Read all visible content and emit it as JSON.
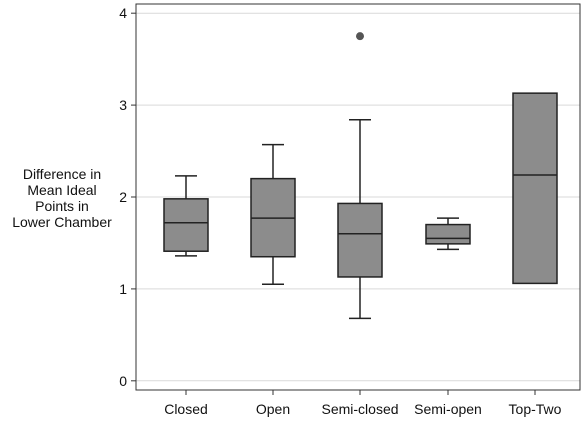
{
  "chart_data": {
    "type": "boxplot",
    "title": "",
    "xlabel": "",
    "ylabel_lines": [
      "Difference in",
      "Mean Ideal",
      "Points in",
      "Lower Chamber"
    ],
    "ylim": [
      -0.1,
      4.1
    ],
    "yticks": [
      0,
      1,
      2,
      3,
      4
    ],
    "ytick_labels": [
      "0",
      "1",
      "2",
      "3",
      "4"
    ],
    "grid": "horizontal",
    "categories": [
      "Closed",
      "Open",
      "Semi-closed",
      "Semi-open",
      "Top-Two"
    ],
    "boxes": [
      {
        "category": "Closed",
        "whisker_low": 1.36,
        "q1": 1.41,
        "median": 1.72,
        "q3": 1.98,
        "whisker_high": 2.23,
        "outliers": []
      },
      {
        "category": "Open",
        "whisker_low": 1.05,
        "q1": 1.35,
        "median": 1.77,
        "q3": 2.2,
        "whisker_high": 2.57,
        "outliers": []
      },
      {
        "category": "Semi-closed",
        "whisker_low": 0.68,
        "q1": 1.13,
        "median": 1.6,
        "q3": 1.93,
        "whisker_high": 2.84,
        "outliers": [
          3.75
        ]
      },
      {
        "category": "Semi-open",
        "whisker_low": 1.43,
        "q1": 1.49,
        "median": 1.55,
        "q3": 1.7,
        "whisker_high": 1.77,
        "outliers": []
      },
      {
        "category": "Top-Two",
        "whisker_low": 1.06,
        "q1": 1.06,
        "median": 2.24,
        "q3": 3.13,
        "whisker_high": 3.13,
        "outliers": []
      }
    ],
    "colors": {
      "box_fill": "#8c8c8c",
      "box_stroke": "#222222",
      "outlier": "#555555",
      "grid": "#d9d9d9",
      "axis": "#333333",
      "text": "#111111"
    }
  }
}
